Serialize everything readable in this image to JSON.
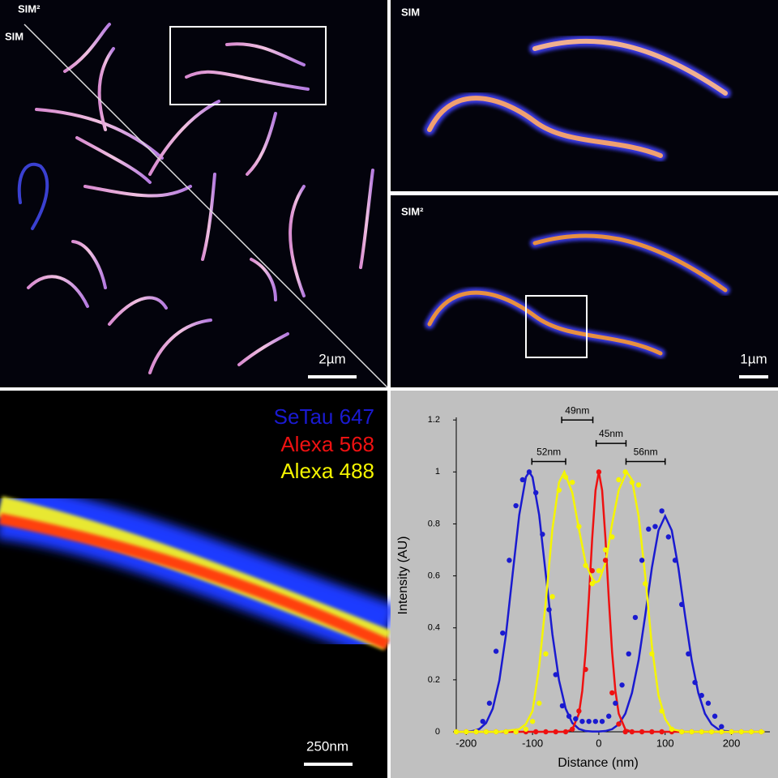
{
  "panels": {
    "overview": {
      "upper_label": "SIM²",
      "lower_label": "SIM",
      "scale_bar": "2µm"
    },
    "zoom": {
      "upper_label": "SIM",
      "lower_label": "SIM²",
      "scale_bar": "1µm"
    },
    "detail": {
      "scale_bar": "250nm"
    }
  },
  "chart_data": {
    "type": "line",
    "x_label": "Distance (nm)",
    "y_label": "Intensity (AU)",
    "xlim": [
      -215,
      258
    ],
    "ylim": [
      0,
      1.21
    ],
    "xticks": [
      -200,
      -100,
      0,
      100,
      200
    ],
    "yticks": [
      0,
      0.2,
      0.4,
      0.6,
      0.8,
      1,
      1.2
    ],
    "series": [
      {
        "name": "SeTau 647",
        "color": "#1a1ad0",
        "x": [
          -175,
          -165,
          -155,
          -145,
          -135,
          -125,
          -115,
          -105,
          -95,
          -85,
          -75,
          -65,
          -55,
          -45,
          -35,
          -25,
          -15,
          -5,
          5,
          15,
          25,
          35,
          45,
          55,
          65,
          75,
          85,
          95,
          105,
          115,
          125,
          135,
          145,
          155,
          165,
          175,
          185
        ],
        "values": [
          0.04,
          0.11,
          0.31,
          0.38,
          0.66,
          0.87,
          0.97,
          1.0,
          0.92,
          0.76,
          0.47,
          0.22,
          0.1,
          0.06,
          0.05,
          0.04,
          0.04,
          0.04,
          0.04,
          0.06,
          0.11,
          0.18,
          0.3,
          0.44,
          0.66,
          0.78,
          0.79,
          0.85,
          0.75,
          0.66,
          0.49,
          0.3,
          0.19,
          0.14,
          0.11,
          0.06,
          0.02
        ],
        "fit_x": [
          -200,
          -190,
          -180,
          -170,
          -160,
          -150,
          -140,
          -130,
          -120,
          -110,
          -105,
          -100,
          -90,
          -80,
          -70,
          -60,
          -50,
          -40,
          -30,
          -20,
          -10,
          0,
          10,
          20,
          30,
          40,
          50,
          60,
          70,
          80,
          90,
          100,
          110,
          120,
          130,
          140,
          150,
          160,
          170,
          180,
          190,
          200
        ],
        "fit_values": [
          0,
          0.003,
          0.011,
          0.034,
          0.089,
          0.198,
          0.375,
          0.607,
          0.835,
          0.98,
          1.0,
          0.98,
          0.835,
          0.607,
          0.375,
          0.198,
          0.089,
          0.034,
          0.011,
          0.003,
          0.001,
          0.001,
          0.003,
          0.01,
          0.029,
          0.07,
          0.15,
          0.276,
          0.448,
          0.631,
          0.775,
          0.83,
          0.775,
          0.631,
          0.448,
          0.276,
          0.15,
          0.07,
          0.029,
          0.01,
          0.003,
          0.001
        ]
      },
      {
        "name": "Alexa 568",
        "color": "#ee1111",
        "x": [
          -215,
          -200,
          -185,
          -170,
          -155,
          -140,
          -125,
          -110,
          -95,
          -80,
          -65,
          -50,
          -40,
          -30,
          -20,
          -10,
          0,
          10,
          20,
          30,
          40,
          50,
          65,
          80,
          95,
          110,
          125,
          140,
          155,
          170,
          185,
          200,
          215,
          230,
          245
        ],
        "values": [
          0,
          0,
          0,
          0,
          0,
          0,
          0,
          0,
          0,
          0,
          0,
          0,
          0.01,
          0.08,
          0.24,
          0.62,
          1.0,
          0.66,
          0.15,
          0.03,
          0,
          0,
          0,
          0,
          0,
          0,
          0,
          0,
          0,
          0,
          0,
          0,
          0,
          0,
          0
        ],
        "fit_x": [
          -215,
          -50,
          -40,
          -30,
          -25,
          -20,
          -15,
          -10,
          -5,
          0,
          5,
          10,
          15,
          20,
          25,
          30,
          40,
          50,
          250
        ],
        "fit_values": [
          0,
          0,
          0.009,
          0.07,
          0.157,
          0.307,
          0.514,
          0.744,
          0.929,
          1,
          0.929,
          0.744,
          0.514,
          0.307,
          0.157,
          0.07,
          0.009,
          0,
          0
        ]
      },
      {
        "name": "Alexa 488",
        "color": "#f5f500",
        "x": [
          -215,
          -200,
          -185,
          -170,
          -155,
          -140,
          -125,
          -110,
          -100,
          -90,
          -80,
          -70,
          -60,
          -50,
          -40,
          -30,
          -20,
          -10,
          0,
          10,
          20,
          30,
          40,
          50,
          60,
          70,
          80,
          95,
          110,
          125,
          140,
          155,
          170,
          185,
          200,
          215,
          230,
          245
        ],
        "values": [
          0,
          0,
          0,
          0,
          0,
          0,
          0,
          0.01,
          0.04,
          0.11,
          0.3,
          0.52,
          0.93,
          0.98,
          0.96,
          0.79,
          0.64,
          0.57,
          0.62,
          0.7,
          0.75,
          0.97,
          1.0,
          0.96,
          0.95,
          0.57,
          0.3,
          0.08,
          0.01,
          0,
          0,
          0,
          0,
          0,
          0,
          0,
          0,
          0
        ],
        "fit_x": [
          -215,
          -150,
          -120,
          -110,
          -100,
          -90,
          -80,
          -70,
          -60,
          -52,
          -40,
          -30,
          -20,
          -10,
          -5,
          0,
          10,
          20,
          30,
          42,
          50,
          60,
          70,
          80,
          90,
          100,
          110,
          130,
          250
        ],
        "fit_values": [
          0,
          0,
          0.01,
          0.03,
          0.08,
          0.25,
          0.5,
          0.78,
          0.96,
          1.0,
          0.92,
          0.78,
          0.65,
          0.59,
          0.575,
          0.58,
          0.65,
          0.8,
          0.93,
          1.0,
          0.97,
          0.83,
          0.6,
          0.33,
          0.14,
          0.05,
          0.01,
          0,
          0
        ]
      }
    ],
    "annotations": [
      {
        "text": "52nm",
        "x": [
          -101,
          -50
        ],
        "y": 1.04
      },
      {
        "text": "49nm",
        "x": [
          -56,
          -9
        ],
        "y": 1.2
      },
      {
        "text": "45nm",
        "x": [
          -4,
          41
        ],
        "y": 1.11
      },
      {
        "text": "56nm",
        "x": [
          41,
          100
        ],
        "y": 1.04
      }
    ]
  }
}
